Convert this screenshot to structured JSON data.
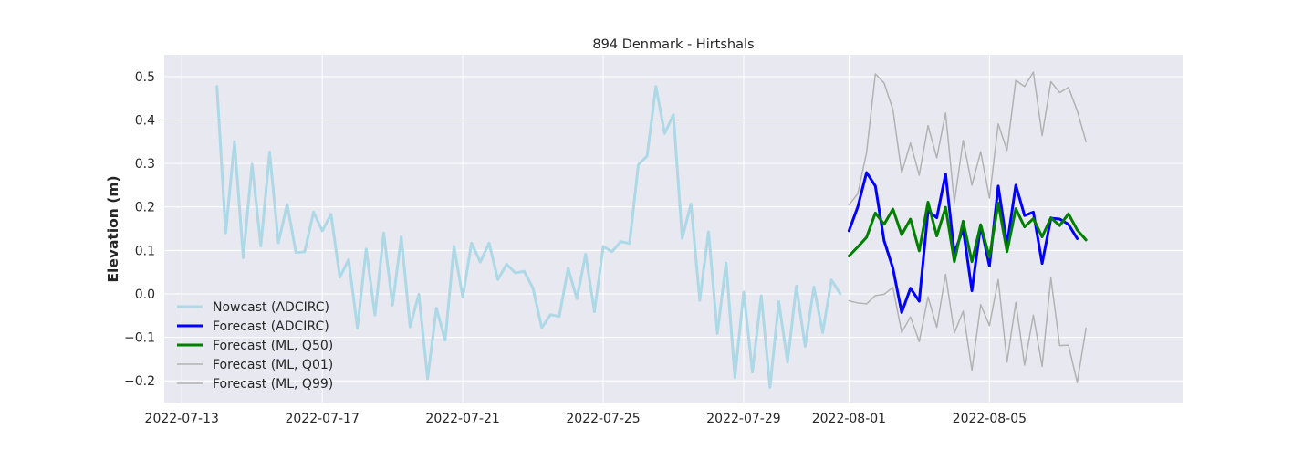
{
  "chart_data": {
    "type": "line",
    "title": "894 Denmark - Hirtshals",
    "xlabel": "",
    "ylabel": "Elevation (m)",
    "x_range": [
      "2022-07-12T12:00",
      "2022-08-10T12:00"
    ],
    "ylim": [
      -0.25,
      0.55
    ],
    "x_ticks": [
      "2022-07-13",
      "2022-07-17",
      "2022-07-21",
      "2022-07-25",
      "2022-07-29",
      "2022-08-01",
      "2022-08-05"
    ],
    "y_ticks": [
      -0.2,
      -0.1,
      0.0,
      0.1,
      0.2,
      0.3,
      0.4,
      0.5
    ],
    "y_tick_labels": [
      "−0.2",
      "−0.1",
      "0.0",
      "0.1",
      "0.2",
      "0.3",
      "0.4",
      "0.5"
    ],
    "grid": true,
    "legend_position": "lower-left",
    "background": "#e8e8f1",
    "series": [
      {
        "name": "Nowcast (ADCIRC)",
        "color": "#add8e6",
        "line_width": 3,
        "x_start": "2022-07-14T00:00",
        "x_step_hours": 6,
        "values": [
          0.477,
          0.14,
          0.35,
          0.083,
          0.298,
          0.11,
          0.326,
          0.118,
          0.206,
          0.095,
          0.097,
          0.188,
          0.145,
          0.183,
          0.038,
          0.079,
          -0.079,
          0.103,
          -0.049,
          0.14,
          -0.026,
          0.131,
          -0.076,
          -0.001,
          -0.195,
          -0.033,
          -0.107,
          0.109,
          -0.008,
          0.117,
          0.073,
          0.117,
          0.033,
          0.068,
          0.048,
          0.052,
          0.013,
          -0.078,
          -0.048,
          -0.052,
          0.059,
          -0.011,
          0.091,
          -0.041,
          0.109,
          0.097,
          0.12,
          0.116,
          0.297,
          0.317,
          0.477,
          0.369,
          0.412,
          0.128,
          0.207,
          -0.015,
          0.143,
          -0.091,
          0.071,
          -0.192,
          0.004,
          -0.18,
          -0.004,
          -0.215,
          -0.018,
          -0.157,
          0.018,
          -0.121,
          0.016,
          -0.089,
          0.032,
          0.0
        ]
      },
      {
        "name": "Forecast (ADCIRC)",
        "color": "#0000ff",
        "line_width": 3,
        "x_start": "2022-08-01T00:00",
        "x_step_hours": 6,
        "values": [
          0.145,
          0.2,
          0.279,
          0.248,
          0.122,
          0.059,
          -0.043,
          0.013,
          -0.017,
          0.191,
          0.175,
          0.276,
          0.093,
          0.15,
          0.007,
          0.158,
          0.064,
          0.248,
          0.112,
          0.25,
          0.18,
          0.188,
          0.07,
          0.174,
          0.172,
          0.16,
          0.127
        ]
      },
      {
        "name": "Forecast (ML, Q50)",
        "color": "#008000",
        "line_width": 3,
        "x_start": "2022-08-01T00:00",
        "x_step_hours": 6,
        "values": [
          0.087,
          0.108,
          0.13,
          0.186,
          0.16,
          0.195,
          0.136,
          0.172,
          0.099,
          0.211,
          0.133,
          0.199,
          0.074,
          0.167,
          0.074,
          0.159,
          0.084,
          0.209,
          0.097,
          0.196,
          0.154,
          0.173,
          0.131,
          0.175,
          0.157,
          0.184,
          0.147,
          0.124
        ]
      },
      {
        "name": "Forecast (ML, Q01)",
        "color": "#b2b2b2",
        "line_width": 1.5,
        "x_start": "2022-08-01T00:00",
        "x_step_hours": 6,
        "values": [
          -0.016,
          -0.021,
          -0.023,
          -0.004,
          -0.001,
          0.015,
          -0.089,
          -0.053,
          -0.11,
          -0.007,
          -0.077,
          0.045,
          -0.09,
          -0.04,
          -0.176,
          -0.025,
          -0.073,
          0.033,
          -0.157,
          -0.02,
          -0.164,
          -0.049,
          -0.167,
          0.037,
          -0.119,
          -0.118,
          -0.204,
          -0.079
        ]
      },
      {
        "name": "Forecast (ML, Q99)",
        "color": "#b2b2b2",
        "line_width": 1.5,
        "x_start": "2022-08-01T00:00",
        "x_step_hours": 6,
        "values": [
          0.205,
          0.23,
          0.325,
          0.506,
          0.485,
          0.424,
          0.278,
          0.347,
          0.273,
          0.387,
          0.313,
          0.416,
          0.21,
          0.353,
          0.25,
          0.327,
          0.22,
          0.391,
          0.33,
          0.491,
          0.477,
          0.51,
          0.364,
          0.488,
          0.463,
          0.475,
          0.421,
          0.35
        ]
      }
    ]
  }
}
